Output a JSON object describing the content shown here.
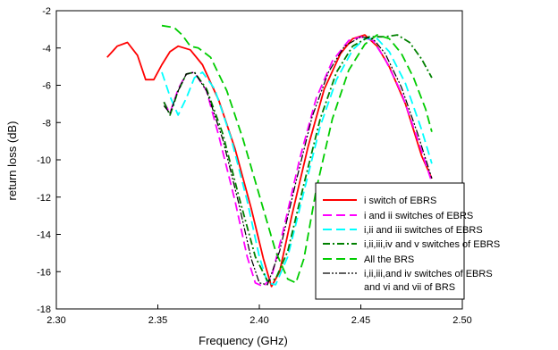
{
  "chart_data": {
    "type": "line",
    "title": "",
    "xlabel": "Frequency (GHz)",
    "ylabel": "return loss (dB)",
    "xlim": [
      2.3,
      2.5
    ],
    "ylim": [
      -18,
      -2
    ],
    "xticks": [
      "2.30",
      "2.35",
      "2.40",
      "2.45",
      "2.50"
    ],
    "yticks": [
      "-18",
      "-16",
      "-14",
      "-12",
      "-10",
      "-8",
      "-6",
      "-4",
      "-2"
    ],
    "xtick_values": [
      2.3,
      2.35,
      2.4,
      2.45,
      2.5
    ],
    "ytick_values": [
      -18,
      -16,
      -14,
      -12,
      -10,
      -8,
      -6,
      -4,
      -2
    ],
    "grid": false,
    "legend_position": "bottom-right",
    "series": [
      {
        "name": "i switch of EBRS",
        "color": "#ff0000",
        "dash": "solid",
        "points": [
          [
            2.325,
            -4.5
          ],
          [
            2.33,
            -3.9
          ],
          [
            2.335,
            -3.7
          ],
          [
            2.34,
            -4.4
          ],
          [
            2.344,
            -5.7
          ],
          [
            2.348,
            -5.7
          ],
          [
            2.352,
            -4.9
          ],
          [
            2.356,
            -4.2
          ],
          [
            2.36,
            -3.9
          ],
          [
            2.366,
            -4.1
          ],
          [
            2.372,
            -4.9
          ],
          [
            2.38,
            -6.8
          ],
          [
            2.388,
            -9.4
          ],
          [
            2.396,
            -12.6
          ],
          [
            2.402,
            -15.3
          ],
          [
            2.406,
            -16.8
          ],
          [
            2.41,
            -16.0
          ],
          [
            2.416,
            -13.0
          ],
          [
            2.424,
            -9.3
          ],
          [
            2.432,
            -6.2
          ],
          [
            2.44,
            -4.3
          ],
          [
            2.446,
            -3.5
          ],
          [
            2.452,
            -3.3
          ],
          [
            2.458,
            -3.9
          ],
          [
            2.464,
            -5.0
          ],
          [
            2.472,
            -7.0
          ],
          [
            2.48,
            -9.8
          ],
          [
            2.485,
            -11.0
          ]
        ]
      },
      {
        "name": "i and ii switches of EBRS",
        "color": "#ff00ff",
        "dash": "long-dash",
        "points": [
          [
            2.353,
            -6.9
          ],
          [
            2.356,
            -7.5
          ],
          [
            2.36,
            -6.2
          ],
          [
            2.364,
            -5.4
          ],
          [
            2.368,
            -5.3
          ],
          [
            2.374,
            -6.3
          ],
          [
            2.38,
            -8.7
          ],
          [
            2.388,
            -12.2
          ],
          [
            2.394,
            -15.2
          ],
          [
            2.398,
            -16.6
          ],
          [
            2.402,
            -16.8
          ],
          [
            2.406,
            -16.3
          ],
          [
            2.412,
            -13.7
          ],
          [
            2.42,
            -9.9
          ],
          [
            2.428,
            -6.7
          ],
          [
            2.436,
            -4.7
          ],
          [
            2.444,
            -3.6
          ],
          [
            2.45,
            -3.4
          ],
          [
            2.456,
            -3.6
          ],
          [
            2.462,
            -4.6
          ],
          [
            2.47,
            -6.4
          ],
          [
            2.478,
            -8.9
          ],
          [
            2.485,
            -11.2
          ]
        ]
      },
      {
        "name": "i,ii and iii switches of EBRS",
        "color": "#00ffff",
        "dash": "long-dash",
        "points": [
          [
            2.352,
            -5.3
          ],
          [
            2.356,
            -6.6
          ],
          [
            2.36,
            -7.6
          ],
          [
            2.364,
            -6.7
          ],
          [
            2.368,
            -5.6
          ],
          [
            2.372,
            -5.3
          ],
          [
            2.378,
            -6.2
          ],
          [
            2.386,
            -8.8
          ],
          [
            2.394,
            -12.2
          ],
          [
            2.4,
            -15.2
          ],
          [
            2.404,
            -16.6
          ],
          [
            2.408,
            -16.7
          ],
          [
            2.414,
            -15.2
          ],
          [
            2.422,
            -11.7
          ],
          [
            2.43,
            -8.2
          ],
          [
            2.438,
            -5.7
          ],
          [
            2.446,
            -4.1
          ],
          [
            2.452,
            -3.5
          ],
          [
            2.458,
            -3.5
          ],
          [
            2.464,
            -4.2
          ],
          [
            2.472,
            -5.9
          ],
          [
            2.48,
            -8.4
          ],
          [
            2.485,
            -10.2
          ]
        ]
      },
      {
        "name": "i,ii,iii,iv and v switches of EBRS",
        "color": "#008000",
        "dash": "dash-dot",
        "points": [
          [
            2.353,
            -6.9
          ],
          [
            2.356,
            -7.6
          ],
          [
            2.36,
            -6.3
          ],
          [
            2.364,
            -5.4
          ],
          [
            2.368,
            -5.3
          ],
          [
            2.374,
            -6.2
          ],
          [
            2.382,
            -8.6
          ],
          [
            2.39,
            -12.0
          ],
          [
            2.398,
            -15.2
          ],
          [
            2.404,
            -16.5
          ],
          [
            2.408,
            -16.4
          ],
          [
            2.414,
            -14.9
          ],
          [
            2.422,
            -11.3
          ],
          [
            2.43,
            -7.8
          ],
          [
            2.438,
            -5.3
          ],
          [
            2.446,
            -3.9
          ],
          [
            2.454,
            -3.4
          ],
          [
            2.462,
            -3.4
          ],
          [
            2.468,
            -3.3
          ],
          [
            2.474,
            -3.7
          ],
          [
            2.48,
            -4.6
          ],
          [
            2.485,
            -5.6
          ]
        ]
      },
      {
        "name": "All the BRS",
        "color": "#00cc00",
        "dash": "long-dash",
        "points": [
          [
            2.352,
            -2.8
          ],
          [
            2.358,
            -2.9
          ],
          [
            2.362,
            -3.3
          ],
          [
            2.366,
            -3.9
          ],
          [
            2.37,
            -4.0
          ],
          [
            2.376,
            -4.5
          ],
          [
            2.384,
            -6.3
          ],
          [
            2.392,
            -8.9
          ],
          [
            2.4,
            -11.9
          ],
          [
            2.408,
            -14.9
          ],
          [
            2.414,
            -16.4
          ],
          [
            2.418,
            -16.6
          ],
          [
            2.422,
            -15.3
          ],
          [
            2.428,
            -11.6
          ],
          [
            2.436,
            -7.8
          ],
          [
            2.444,
            -5.2
          ],
          [
            2.452,
            -3.8
          ],
          [
            2.458,
            -3.3
          ],
          [
            2.464,
            -3.5
          ],
          [
            2.47,
            -4.3
          ],
          [
            2.476,
            -5.6
          ],
          [
            2.482,
            -7.3
          ],
          [
            2.485,
            -8.5
          ]
        ]
      },
      {
        "name": "i,ii,iii,and iv switches of EBRS and vi and vii of BRS",
        "color": "#000000",
        "dash": "dash-dot-dot",
        "points": [
          [
            2.353,
            -7.1
          ],
          [
            2.356,
            -7.5
          ],
          [
            2.36,
            -6.3
          ],
          [
            2.364,
            -5.4
          ],
          [
            2.368,
            -5.3
          ],
          [
            2.374,
            -6.3
          ],
          [
            2.382,
            -8.9
          ],
          [
            2.39,
            -12.4
          ],
          [
            2.396,
            -15.3
          ],
          [
            2.4,
            -16.6
          ],
          [
            2.404,
            -16.7
          ],
          [
            2.41,
            -14.9
          ],
          [
            2.418,
            -11.2
          ],
          [
            2.426,
            -7.7
          ],
          [
            2.434,
            -5.3
          ],
          [
            2.442,
            -3.9
          ],
          [
            2.45,
            -3.4
          ],
          [
            2.456,
            -3.5
          ],
          [
            2.462,
            -4.3
          ],
          [
            2.47,
            -6.1
          ],
          [
            2.478,
            -8.6
          ],
          [
            2.485,
            -11.0
          ]
        ]
      }
    ]
  },
  "legend": {
    "items": [
      {
        "label": "i switch of EBRS"
      },
      {
        "label": "i and ii switches of EBRS"
      },
      {
        "label": "i,ii and iii switches of EBRS"
      },
      {
        "label": "i,ii,iii,iv and v switches of EBRS"
      },
      {
        "label": "All the BRS"
      },
      {
        "label": "i,ii,iii,and iv switches of EBRS"
      },
      {
        "label": "and vi and vii of BRS"
      }
    ]
  }
}
